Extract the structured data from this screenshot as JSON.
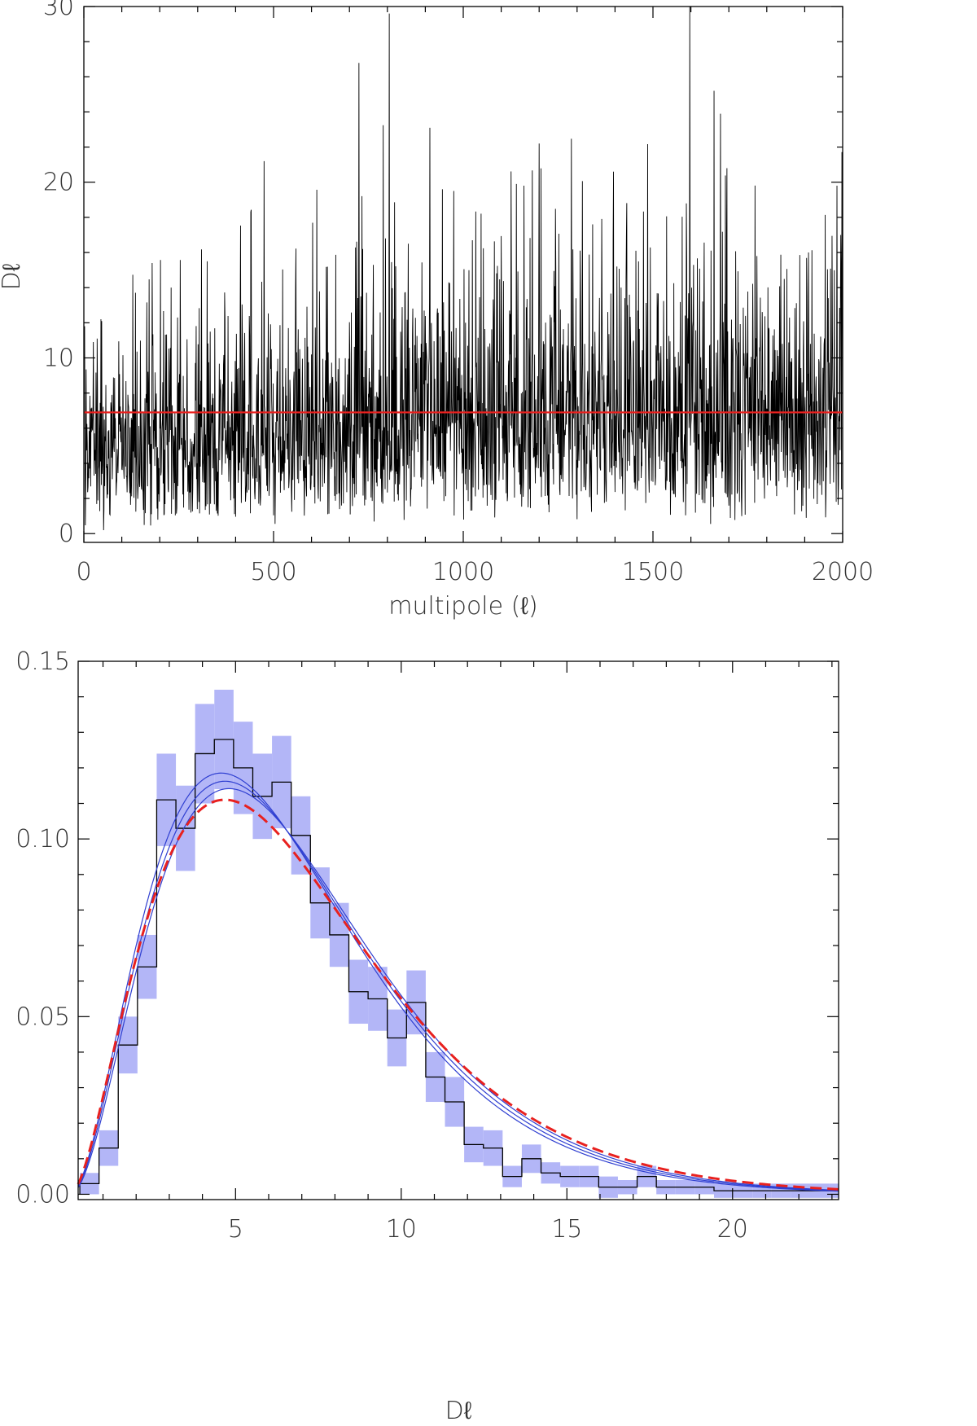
{
  "chart_data": [
    {
      "type": "line",
      "title": "",
      "xlabel": "multipole (ℓ)",
      "ylabel": "Dℓ",
      "xlim": [
        0,
        2000
      ],
      "ylim": [
        -0.5,
        30
      ],
      "grid": false,
      "x_ticks": [
        0,
        500,
        1000,
        1500,
        2000
      ],
      "x_tick_labels": [
        "0",
        "500",
        "1000",
        "1500",
        "2000"
      ],
      "y_ticks": [
        0,
        10,
        20,
        30
      ],
      "y_tick_labels": [
        "0",
        "10",
        "20",
        "30"
      ],
      "noise": {
        "color": "#000000",
        "lmin": 2,
        "lmax": 2000,
        "mean_low_l": 5.0,
        "mean_high_l": 7.2,
        "peaks": [
          {
            "x": 2,
            "y": 11.8
          },
          {
            "x": 45,
            "y": 12.2
          },
          {
            "x": 180,
            "y": 15.4
          },
          {
            "x": 230,
            "y": 14.0
          },
          {
            "x": 325,
            "y": 15.5
          },
          {
            "x": 440,
            "y": 18.3
          },
          {
            "x": 475,
            "y": 21.2
          },
          {
            "x": 735,
            "y": 16.2
          },
          {
            "x": 795,
            "y": 16.8
          },
          {
            "x": 855,
            "y": 16.5
          },
          {
            "x": 912,
            "y": 23.1
          },
          {
            "x": 945,
            "y": 19.6
          },
          {
            "x": 975,
            "y": 19.5
          },
          {
            "x": 1140,
            "y": 19.9
          },
          {
            "x": 1160,
            "y": 19.8
          },
          {
            "x": 1200,
            "y": 22.2
          },
          {
            "x": 1395,
            "y": 16.8
          },
          {
            "x": 1455,
            "y": 16.1
          },
          {
            "x": 1695,
            "y": 20.8
          },
          {
            "x": 1910,
            "y": 16.0
          },
          {
            "x": 1985,
            "y": 19.8
          },
          {
            "x": 1995,
            "y": 17.0
          }
        ],
        "min_value": 0.1
      },
      "mean_line": {
        "y": 6.9,
        "color": "#e8211f"
      }
    },
    {
      "type": "bar",
      "title": "",
      "xlabel": "Dℓ",
      "ylabel": "",
      "xlim": [
        0.25,
        23.2
      ],
      "ylim": [
        -0.0015,
        0.15
      ],
      "grid": false,
      "x_ticks": [
        5,
        10,
        15,
        20
      ],
      "x_tick_labels": [
        "5",
        "10",
        "15",
        "20"
      ],
      "y_ticks": [
        0,
        0.05,
        0.1,
        0.15
      ],
      "y_tick_labels": [
        "0.00",
        "0.05",
        "0.10",
        "0.15"
      ],
      "bin_width": 0.58,
      "bins_start": 0.3,
      "histogram": [
        0.003,
        0.013,
        0.042,
        0.064,
        0.111,
        0.103,
        0.124,
        0.128,
        0.12,
        0.112,
        0.116,
        0.101,
        0.082,
        0.073,
        0.057,
        0.055,
        0.044,
        0.054,
        0.033,
        0.026,
        0.014,
        0.013,
        0.005,
        0.01,
        0.006,
        0.005,
        0.005,
        0.002,
        0.002,
        0.005,
        0.002,
        0.002,
        0.002,
        0.001,
        0.001,
        0.001,
        0.001,
        0.001,
        0.001,
        0.001
      ],
      "uncertainty_band": {
        "color": "#b3b6f7",
        "halfwidth": [
          0.003,
          0.005,
          0.008,
          0.009,
          0.013,
          0.012,
          0.014,
          0.014,
          0.013,
          0.012,
          0.013,
          0.011,
          0.01,
          0.009,
          0.009,
          0.009,
          0.008,
          0.009,
          0.007,
          0.007,
          0.005,
          0.005,
          0.003,
          0.004,
          0.003,
          0.003,
          0.003,
          0.003,
          0.002,
          0.003,
          0.002,
          0.002,
          0.002,
          0.002,
          0.002,
          0.002,
          0.002,
          0.002,
          0.002,
          0.002
        ]
      },
      "model_curves": [
        {
          "color": "#2f3fd1",
          "mean": 7.0,
          "shape": 3.02
        },
        {
          "color": "#2f3fd1",
          "mean": 6.85,
          "shape": 3.0
        },
        {
          "color": "#2f3fd1",
          "mean": 7.15,
          "shape": 3.05
        }
      ],
      "reference_curve": {
        "color": "#e8211f",
        "dashed": true,
        "mean": 7.2,
        "shape": 2.85
      }
    }
  ]
}
